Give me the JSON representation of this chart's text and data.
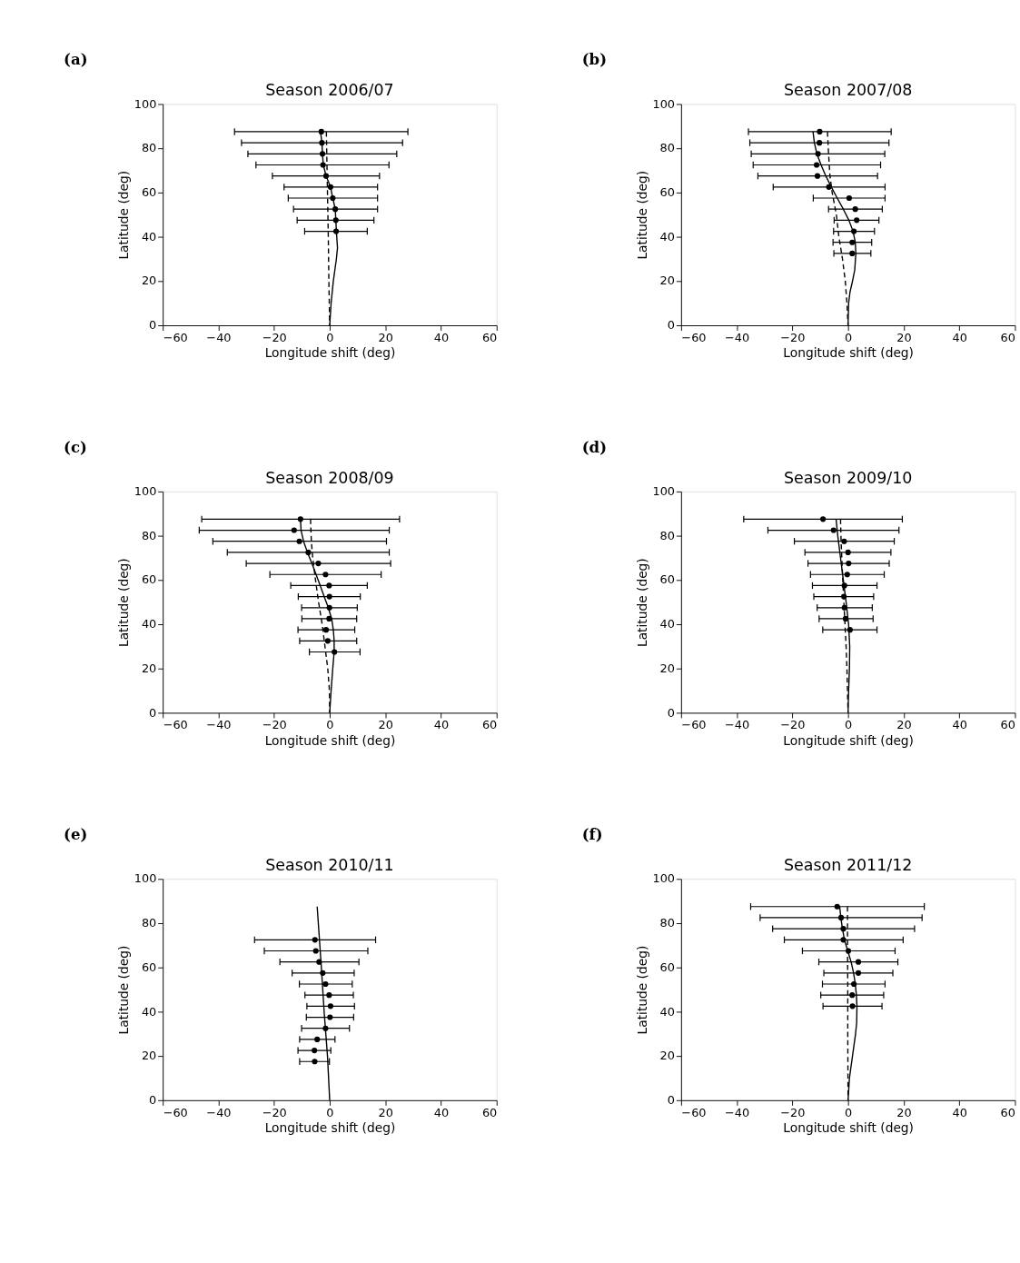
{
  "chart_data": [
    {
      "type": "scatter",
      "title": "Season 2006/07",
      "xlabel": "Longitude shift (deg)",
      "ylabel": "Latitude (deg)",
      "annotations": [
        "(a)"
      ],
      "xlim": [
        -60,
        60
      ],
      "ylim": [
        0,
        100
      ],
      "xticks": [
        -60,
        -40,
        -20,
        0,
        20,
        40,
        60
      ],
      "yticks": [
        0,
        20,
        40,
        60,
        80,
        100
      ],
      "grid": false,
      "series": [
        {
          "marker": "circle",
          "color": "#000000",
          "x": [
            -3.0,
            -2.8,
            -2.6,
            -2.4,
            -1.3,
            0.3,
            1.1,
            2.0,
            2.2,
            2.3
          ],
          "values": [
            87.5,
            82.5,
            77.5,
            72.5,
            67.5,
            62.5,
            57.5,
            52.5,
            47.5,
            42.5
          ],
          "xerrors": [
            [
              -34.2,
              28.1
            ],
            [
              -31.7,
              26.2
            ],
            [
              -29.4,
              24.1
            ],
            [
              -26.5,
              21.3
            ],
            [
              -20.6,
              17.9
            ],
            [
              -16.4,
              17.2
            ],
            [
              -14.9,
              17.2
            ],
            [
              -13.0,
              17.2
            ],
            [
              -11.7,
              15.9
            ],
            [
              -9.0,
              13.5
            ]
          ]
        },
        {
          "type": "line",
          "line_style": "solid",
          "color": "#000000",
          "x": [
            -3.3,
            -2.8,
            -2.6,
            -2.3,
            -1.3,
            0.3,
            1.1,
            2.0,
            2.2,
            2.4,
            2.8,
            2.4,
            1.3,
            0.5,
            0.0
          ],
          "values": [
            87.5,
            82.5,
            77.5,
            72.5,
            67.5,
            62.5,
            57.5,
            52.5,
            47.5,
            42.5,
            35,
            30,
            20,
            10,
            0
          ]
        },
        {
          "type": "line",
          "line_style": "dashed",
          "color": "#000000",
          "x": [
            -1.2,
            -0.8,
            -0.5,
            -0.3,
            0.0
          ],
          "values": [
            87.5,
            60,
            40,
            20,
            0
          ]
        }
      ]
    },
    {
      "type": "scatter",
      "title": "Season 2007/08",
      "xlabel": "Longitude shift (deg)",
      "ylabel": "Latitude (deg)",
      "annotations": [
        "(b)"
      ],
      "xlim": [
        -60,
        60
      ],
      "ylim": [
        0,
        100
      ],
      "xticks": [
        -60,
        -40,
        -20,
        0,
        20,
        40,
        60
      ],
      "yticks": [
        0,
        20,
        40,
        60,
        80,
        100
      ],
      "grid": false,
      "series": [
        {
          "marker": "circle",
          "color": "#000000",
          "x": [
            -10.2,
            -10.3,
            -10.8,
            -11.3,
            -11.0,
            -6.9,
            0.4,
            2.6,
            3.1,
            2.1,
            1.5,
            1.5
          ],
          "values": [
            87.5,
            82.5,
            77.5,
            72.5,
            67.5,
            62.5,
            57.5,
            52.5,
            47.5,
            42.5,
            37.5,
            32.5
          ],
          "xerrors": [
            [
              -35.8,
              15.5
            ],
            [
              -35.3,
              14.7
            ],
            [
              -34.8,
              13.2
            ],
            [
              -34.1,
              11.7
            ],
            [
              -32.4,
              10.6
            ],
            [
              -26.9,
              13.3
            ],
            [
              -12.5,
              13.3
            ],
            [
              -7.0,
              12.3
            ],
            [
              -5.0,
              11.1
            ],
            [
              -5.2,
              9.5
            ],
            [
              -5.4,
              8.5
            ],
            [
              -5.1,
              8.2
            ]
          ]
        },
        {
          "type": "line",
          "line_style": "solid",
          "color": "#000000",
          "x": [
            -12.6,
            -12.1,
            -11.2,
            -9.7,
            -8.0,
            -6.0,
            -3.9,
            -1.7,
            0.3,
            1.8,
            2.6,
            2.8,
            2.4,
            1.6,
            0.7,
            0.2,
            0.0
          ],
          "values": [
            87.5,
            82.5,
            77.5,
            72.5,
            67.5,
            62.5,
            57.5,
            52.5,
            47.5,
            42.5,
            37.5,
            32.5,
            25,
            20,
            15,
            10,
            0
          ]
        },
        {
          "type": "line",
          "line_style": "dashed",
          "color": "#000000",
          "x": [
            -7.4,
            -7.0,
            -6.5,
            -5.7,
            -4.2,
            -3.3,
            -2.0,
            -1.0,
            -0.4,
            0.0
          ],
          "values": [
            87.5,
            77.5,
            67.5,
            60,
            50,
            40,
            30,
            20,
            10,
            0
          ]
        }
      ]
    },
    {
      "type": "scatter",
      "title": "Season 2008/09",
      "xlabel": "Longitude shift (deg)",
      "ylabel": "Latitude (deg)",
      "annotations": [
        "(c)"
      ],
      "xlim": [
        -60,
        60
      ],
      "ylim": [
        0,
        100
      ],
      "xticks": [
        -60,
        -40,
        -20,
        0,
        20,
        40,
        60
      ],
      "yticks": [
        0,
        20,
        40,
        60,
        80,
        100
      ],
      "grid": false,
      "series": [
        {
          "marker": "circle",
          "color": "#000000",
          "x": [
            -10.5,
            -12.8,
            -10.9,
            -7.7,
            -4.1,
            -1.5,
            -0.2,
            -0.1,
            -0.1,
            -0.2,
            -1.3,
            -0.7,
            1.7
          ],
          "values": [
            87.5,
            82.5,
            77.5,
            72.5,
            67.5,
            62.5,
            57.5,
            52.5,
            47.5,
            42.5,
            37.5,
            32.5,
            27.5
          ],
          "xerrors": [
            [
              -46.0,
              25.1
            ],
            [
              -46.9,
              21.4
            ],
            [
              -42.0,
              20.4
            ],
            [
              -36.8,
              21.4
            ],
            [
              -30.0,
              21.9
            ],
            [
              -21.5,
              18.5
            ],
            [
              -14.0,
              13.5
            ],
            [
              -11.3,
              11.0
            ],
            [
              -10.1,
              9.9
            ],
            [
              -10.0,
              9.7
            ],
            [
              -11.4,
              9.0
            ],
            [
              -10.8,
              9.7
            ],
            [
              -7.3,
              10.9
            ]
          ]
        },
        {
          "type": "line",
          "line_style": "solid",
          "color": "#000000",
          "x": [
            -10.5,
            -10.3,
            -9.4,
            -8.0,
            -6.4,
            -4.9,
            -3.4,
            -2.0,
            -0.5,
            0.7,
            1.3,
            1.6,
            1.6,
            1.1,
            0.5,
            0.0
          ],
          "values": [
            87.5,
            82.5,
            77.5,
            72.5,
            67.5,
            62.5,
            57.5,
            52.5,
            47.5,
            42.5,
            37.5,
            32.5,
            27.5,
            20,
            10,
            0
          ]
        },
        {
          "type": "line",
          "line_style": "dashed",
          "color": "#000000",
          "x": [
            -6.9,
            -6.6,
            -6.1,
            -5.1,
            -4.0,
            -2.7,
            -1.7,
            -0.7,
            -0.1,
            0.0
          ],
          "values": [
            87.5,
            77.5,
            70,
            60,
            50,
            40,
            30,
            20,
            10,
            0
          ]
        }
      ]
    },
    {
      "type": "scatter",
      "title": "Season 2009/10",
      "xlabel": "Longitude shift (deg)",
      "ylabel": "Latitude (deg)",
      "annotations": [
        "(d)"
      ],
      "xlim": [
        -60,
        60
      ],
      "ylim": [
        0,
        100
      ],
      "xticks": [
        -60,
        -40,
        -20,
        0,
        20,
        40,
        60
      ],
      "yticks": [
        0,
        20,
        40,
        60,
        80,
        100
      ],
      "grid": false,
      "series": [
        {
          "marker": "circle",
          "color": "#000000",
          "x": [
            -9.0,
            -5.2,
            -1.4,
            0.0,
            0.2,
            -0.3,
            -1.3,
            -1.5,
            -1.3,
            -0.9,
            0.7
          ],
          "values": [
            87.5,
            82.5,
            77.5,
            72.5,
            67.5,
            62.5,
            57.5,
            52.5,
            47.5,
            42.5,
            37.5
          ],
          "xerrors": [
            [
              -37.5,
              19.5
            ],
            [
              -28.8,
              18.3
            ],
            [
              -19.3,
              16.6
            ],
            [
              -15.5,
              15.4
            ],
            [
              -14.4,
              14.8
            ],
            [
              -13.5,
              13.0
            ],
            [
              -12.8,
              10.4
            ],
            [
              -12.3,
              9.2
            ],
            [
              -11.1,
              8.7
            ],
            [
              -10.4,
              9.0
            ],
            [
              -9.1,
              10.4
            ]
          ]
        },
        {
          "type": "line",
          "line_style": "solid",
          "color": "#000000",
          "x": [
            -4.3,
            -3.7,
            -2.7,
            -1.7,
            -0.7,
            0.2,
            0.6,
            0.5,
            0.2,
            0.0
          ],
          "values": [
            87.5,
            80,
            70,
            60,
            50,
            40,
            30,
            20,
            10,
            0
          ]
        },
        {
          "type": "line",
          "line_style": "dashed",
          "color": "#000000",
          "x": [
            -2.7,
            -2.5,
            -1.9,
            -1.5,
            -1.1,
            -0.7,
            -0.4,
            -0.2,
            0.0
          ],
          "values": [
            87.5,
            77.5,
            60,
            50,
            40,
            30,
            20,
            10,
            0
          ]
        }
      ]
    },
    {
      "type": "scatter",
      "title": "Season 2010/11",
      "xlabel": "Longitude shift (deg)",
      "ylabel": "Latitude (deg)",
      "annotations": [
        "(e)"
      ],
      "xlim": [
        -60,
        60
      ],
      "ylim": [
        0,
        100
      ],
      "xticks": [
        -60,
        -40,
        -20,
        0,
        20,
        40,
        60
      ],
      "yticks": [
        0,
        20,
        40,
        60,
        80,
        100
      ],
      "grid": false,
      "series": [
        {
          "marker": "circle",
          "color": "#000000",
          "x": [
            -5.3,
            -5.0,
            -3.8,
            -2.5,
            -1.5,
            -0.2,
            0.3,
            0.1,
            -1.5,
            -4.5,
            -5.5,
            -5.4
          ],
          "values": [
            72.5,
            67.5,
            62.5,
            57.5,
            52.5,
            47.5,
            42.5,
            37.5,
            32.5,
            27.5,
            22.5,
            17.5
          ],
          "xerrors": [
            [
              -27.0,
              16.5
            ],
            [
              -23.5,
              13.7
            ],
            [
              -17.9,
              10.5
            ],
            [
              -13.5,
              8.8
            ],
            [
              -10.9,
              8.1
            ],
            [
              -8.9,
              8.5
            ],
            [
              -8.2,
              8.9
            ],
            [
              -8.4,
              8.6
            ],
            [
              -10.1,
              7.1
            ],
            [
              -10.8,
              1.9
            ],
            [
              -11.4,
              0.4
            ],
            [
              -10.8,
              -0.1
            ]
          ]
        },
        {
          "type": "line",
          "line_style": "solid",
          "color": "#000000",
          "x": [
            -4.5,
            -3.0,
            -2.0,
            -0.8,
            0.0
          ],
          "values": [
            87.5,
            60,
            40,
            20,
            0
          ]
        }
      ]
    },
    {
      "type": "scatter",
      "title": "Season 2011/12",
      "xlabel": "Longitude shift (deg)",
      "ylabel": "Latitude (deg)",
      "annotations": [
        "(f)"
      ],
      "xlim": [
        -60,
        60
      ],
      "ylim": [
        0,
        100
      ],
      "xticks": [
        -60,
        -40,
        -20,
        0,
        20,
        40,
        60
      ],
      "yticks": [
        0,
        20,
        40,
        60,
        80,
        100
      ],
      "grid": false,
      "series": [
        {
          "marker": "circle",
          "color": "#000000",
          "x": [
            -3.9,
            -2.5,
            -1.7,
            -1.7,
            0.1,
            3.7,
            3.7,
            2.1,
            1.5,
            1.6
          ],
          "values": [
            87.5,
            82.5,
            77.5,
            72.5,
            67.5,
            62.5,
            57.5,
            52.5,
            47.5,
            42.5
          ],
          "xerrors": [
            [
              -35.0,
              27.4
            ],
            [
              -31.6,
              26.6
            ],
            [
              -27.1,
              23.9
            ],
            [
              -22.9,
              19.8
            ],
            [
              -16.4,
              16.9
            ],
            [
              -10.5,
              17.9
            ],
            [
              -8.7,
              16.1
            ],
            [
              -9.2,
              13.3
            ],
            [
              -9.8,
              12.8
            ],
            [
              -9.0,
              12.2
            ]
          ]
        },
        {
          "type": "line",
          "line_style": "solid",
          "color": "#000000",
          "x": [
            -3.0,
            -2.6,
            -2.0,
            -1.3,
            -0.1,
            1.1,
            2.0,
            2.6,
            3.0,
            3.2,
            3.1,
            2.7,
            1.6,
            0.5,
            0.0
          ],
          "values": [
            87.5,
            82.5,
            77.5,
            72.5,
            67.5,
            62.5,
            57.5,
            52.5,
            47.5,
            42.5,
            35,
            30,
            20,
            10,
            0
          ]
        },
        {
          "type": "line",
          "line_style": "dashed",
          "color": "#000000",
          "x": [
            -0.2,
            -0.2,
            -0.1,
            -0.1,
            0.0
          ],
          "values": [
            87.5,
            70,
            50,
            30,
            0
          ]
        }
      ]
    }
  ]
}
